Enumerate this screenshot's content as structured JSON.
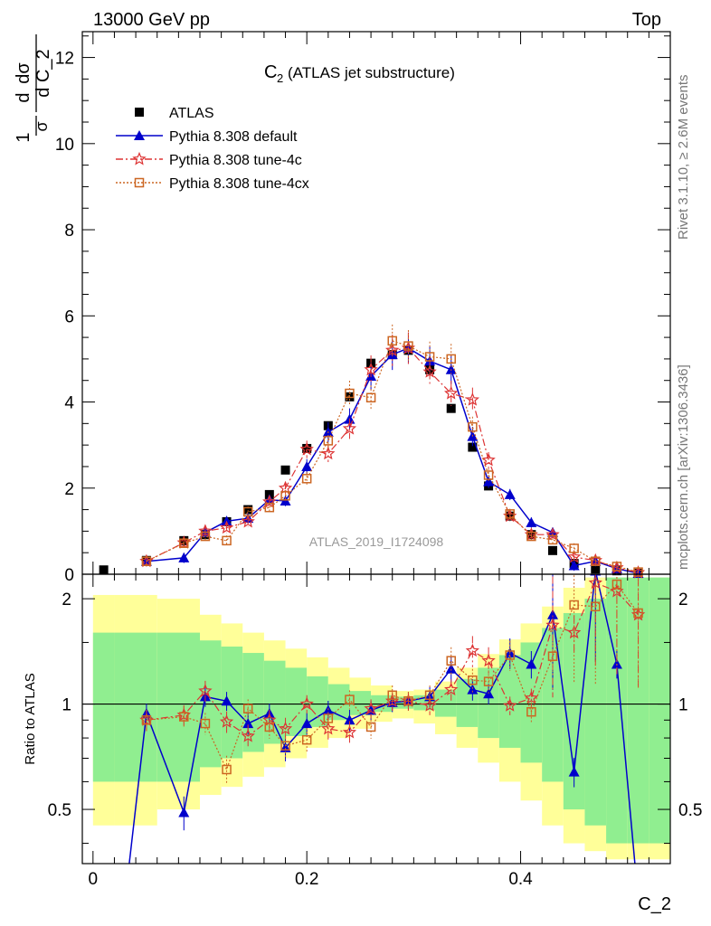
{
  "header": {
    "beam": "13000 GeV pp",
    "process": "Top"
  },
  "side_labels": {
    "right_top": "Rivet 3.1.10, ≥ 2.6M events",
    "right_bottom": "mcplots.cern.ch [arXiv:1306.3436]"
  },
  "chart_data": {
    "type": "scatter",
    "title": "C",
    "title_sub": "2",
    "title_rest": "(ATLAS jet substructure)",
    "analysis_label": "ATLAS_2019_I1724098",
    "xlabel": "C_2",
    "ylabel_main": "1/σ dσ/d C_2",
    "ylabel_main_parts": {
      "frac1_num": "d",
      "frac1_den": "σ",
      "one": "1",
      "frac2_num": "dσ",
      "frac2_den": "d C_2"
    },
    "ylabel_ratio": "Ratio to ATLAS",
    "xlim": [
      -0.01,
      0.54
    ],
    "ylim_main": [
      0,
      12.6
    ],
    "ylim_ratio": [
      0.35,
      2.35
    ],
    "x_ticks": [
      0,
      0.2,
      0.4
    ],
    "x_tick_labels": [
      "0",
      "0.2",
      "0.4"
    ],
    "y_ticks_main": [
      0,
      2,
      4,
      6,
      8,
      10,
      12
    ],
    "y_tick_labels_main": [
      "0",
      "2",
      "4",
      "6",
      "8",
      "10",
      "12"
    ],
    "y_ticks_ratio": [
      0.5,
      1,
      2
    ],
    "y_tick_labels_ratio": [
      "0.5",
      "1",
      "2"
    ],
    "x": [
      0.01,
      0.05,
      0.085,
      0.105,
      0.125,
      0.145,
      0.165,
      0.18,
      0.2,
      0.22,
      0.24,
      0.26,
      0.28,
      0.295,
      0.315,
      0.335,
      0.355,
      0.37,
      0.39,
      0.41,
      0.43,
      0.45,
      0.47,
      0.49,
      0.51
    ],
    "series": [
      {
        "name": "ATLAS",
        "color": "#000000",
        "marker": "square-filled",
        "values": [
          0.1,
          0.32,
          0.78,
          0.92,
          1.22,
          1.5,
          1.85,
          2.42,
          2.92,
          3.45,
          4.12,
          4.9,
          5.1,
          5.2,
          4.75,
          3.85,
          2.95,
          2.05,
          1.35,
          0.92,
          0.55,
          0.25,
          0.12,
          0.08,
          0.02
        ]
      },
      {
        "name": "Pythia 8.308 default",
        "color": "#0000cc",
        "marker": "triangle-filled",
        "values": [
          null,
          0.3,
          0.38,
          0.97,
          1.23,
          1.3,
          1.73,
          1.7,
          2.5,
          3.3,
          3.6,
          4.6,
          5.1,
          5.25,
          4.95,
          4.75,
          3.2,
          2.15,
          1.85,
          1.2,
          0.97,
          0.2,
          0.3,
          0.13,
          0.02
        ]
      },
      {
        "name": "Pythia 8.308 tune-4c",
        "color": "#dd3333",
        "marker": "star-open",
        "values": [
          null,
          0.3,
          0.73,
          1.0,
          1.08,
          1.22,
          1.68,
          2.0,
          2.9,
          2.8,
          3.38,
          4.75,
          5.2,
          5.25,
          4.7,
          4.2,
          4.05,
          2.65,
          1.35,
          0.92,
          0.92,
          0.4,
          0.32,
          0.15,
          0.04
        ]
      },
      {
        "name": "Pythia 8.308 tune-4cx",
        "color": "#cc6622",
        "marker": "square-open",
        "values": [
          null,
          0.3,
          0.72,
          0.88,
          0.78,
          1.45,
          1.55,
          1.82,
          2.22,
          3.1,
          4.2,
          4.1,
          5.42,
          5.3,
          5.05,
          5.0,
          3.42,
          2.3,
          1.4,
          0.88,
          0.8,
          0.6,
          0.3,
          0.18,
          0.05
        ]
      }
    ],
    "ratio_series": [
      {
        "name": "Pythia 8.308 default",
        "values": [
          null,
          0.94,
          0.49,
          1.05,
          1.02,
          0.88,
          0.94,
          0.75,
          0.88,
          0.96,
          0.9,
          0.96,
          1.01,
          1.02,
          1.05,
          1.26,
          1.1,
          1.07,
          1.4,
          1.3,
          1.8,
          0.64,
          2.4,
          1.3,
          null
        ]
      },
      {
        "name": "Pythia 8.308 tune-4c",
        "values": [
          null,
          0.9,
          0.93,
          1.09,
          0.89,
          0.81,
          0.9,
          0.85,
          1.0,
          0.85,
          0.83,
          0.97,
          1.02,
          1.02,
          0.99,
          1.1,
          1.42,
          1.33,
          0.99,
          1.04,
          1.68,
          1.6,
          2.22,
          2.1,
          1.8
        ]
      },
      {
        "name": "Pythia 8.308 tune-4cx",
        "values": [
          null,
          0.9,
          0.92,
          0.88,
          0.65,
          0.97,
          0.86,
          0.76,
          0.79,
          0.91,
          1.03,
          0.86,
          1.06,
          1.02,
          1.06,
          1.33,
          1.17,
          1.16,
          1.38,
          0.95,
          1.37,
          1.92,
          1.9,
          2.2,
          1.82
        ]
      }
    ],
    "uncertainty_bands": {
      "bin_edges": [
        0.0,
        0.02,
        0.06,
        0.1,
        0.12,
        0.14,
        0.16,
        0.18,
        0.2,
        0.22,
        0.24,
        0.26,
        0.28,
        0.3,
        0.32,
        0.34,
        0.36,
        0.38,
        0.4,
        0.42,
        0.44,
        0.46,
        0.48,
        0.5,
        0.52,
        0.54
      ],
      "inner_color": "#90ee90",
      "outer_color": "#ffff99",
      "inner_low": [
        0.6,
        0.6,
        0.6,
        0.66,
        0.7,
        0.73,
        0.77,
        0.81,
        0.86,
        0.9,
        0.93,
        0.95,
        0.97,
        0.96,
        0.92,
        0.86,
        0.8,
        0.75,
        0.68,
        0.6,
        0.5,
        0.45,
        0.4,
        0.4,
        0.4
      ],
      "inner_high": [
        1.6,
        1.6,
        1.6,
        1.52,
        1.46,
        1.4,
        1.33,
        1.27,
        1.2,
        1.14,
        1.09,
        1.06,
        1.05,
        1.06,
        1.1,
        1.18,
        1.27,
        1.38,
        1.5,
        1.65,
        1.82,
        2.0,
        2.3,
        2.3,
        2.3
      ],
      "outer_low": [
        0.45,
        0.45,
        0.5,
        0.55,
        0.58,
        0.62,
        0.66,
        0.7,
        0.75,
        0.8,
        0.85,
        0.89,
        0.91,
        0.88,
        0.82,
        0.75,
        0.68,
        0.6,
        0.53,
        0.45,
        0.4,
        0.38,
        0.36,
        0.36,
        0.36
      ],
      "outer_high": [
        2.05,
        2.05,
        2.0,
        1.8,
        1.7,
        1.6,
        1.52,
        1.44,
        1.36,
        1.27,
        1.19,
        1.13,
        1.09,
        1.1,
        1.16,
        1.27,
        1.39,
        1.53,
        1.7,
        1.9,
        2.15,
        2.3,
        2.3,
        2.3,
        2.3
      ]
    },
    "legend_position": "top-left"
  }
}
